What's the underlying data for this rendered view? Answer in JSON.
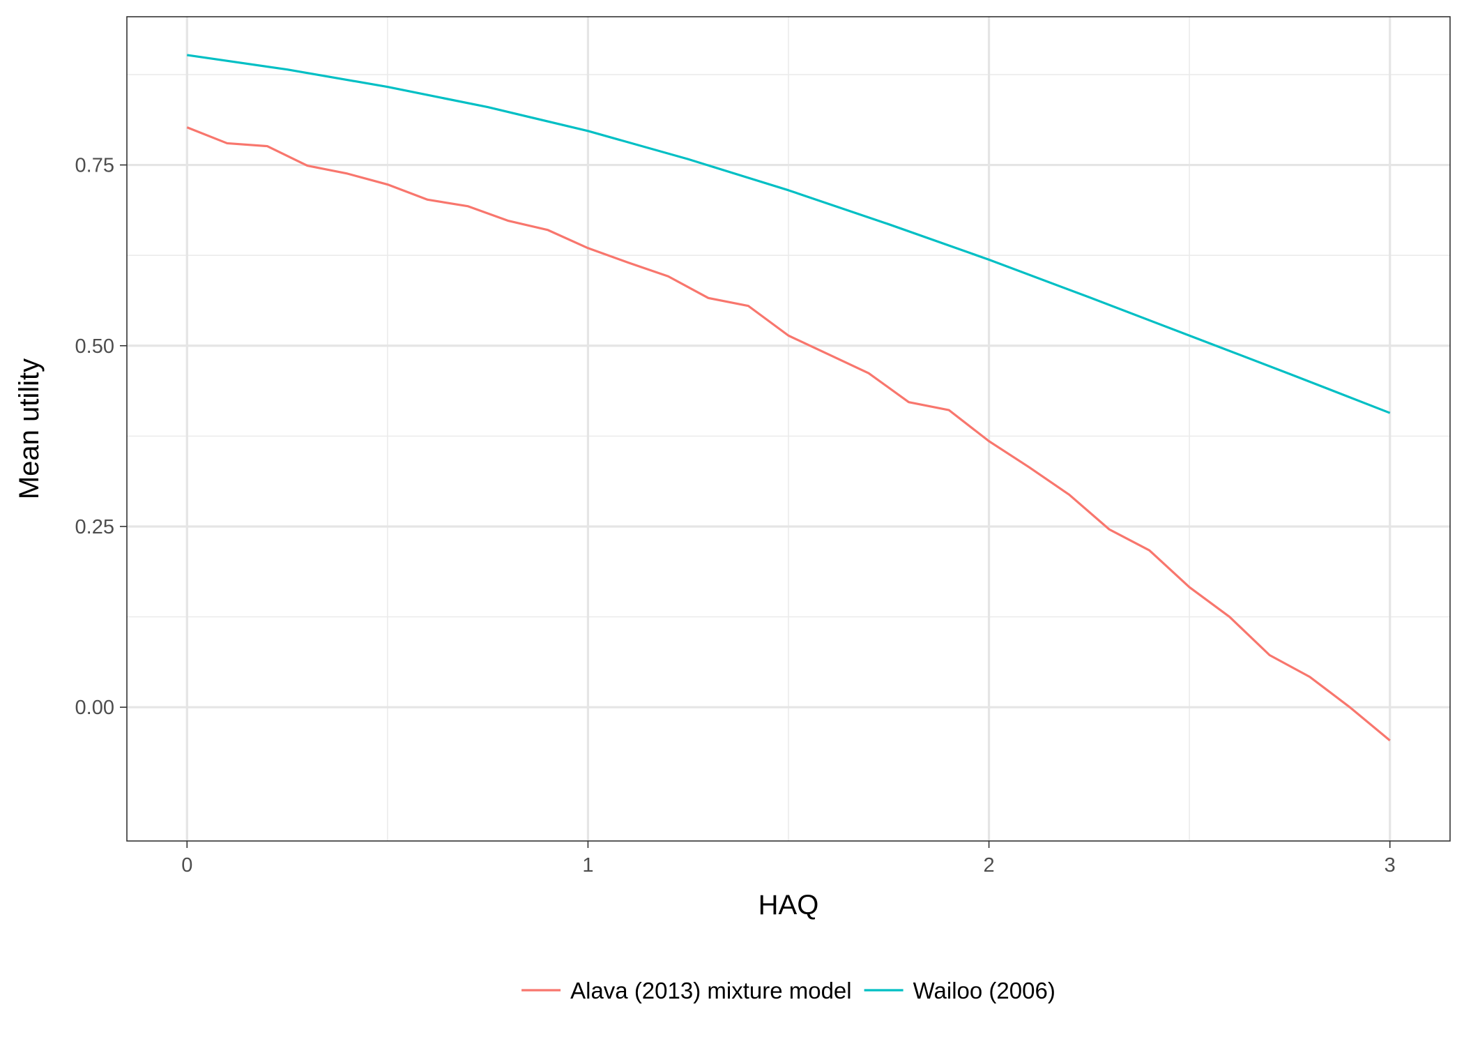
{
  "chart_data": {
    "type": "line",
    "title": "",
    "xlabel": "HAQ",
    "ylabel": "Mean utility",
    "xlim": [
      -0.15,
      3.15
    ],
    "ylim": [
      -0.185,
      0.955
    ],
    "x_ticks": [
      0,
      1,
      2,
      3
    ],
    "x_tick_labels": [
      "0",
      "1",
      "2",
      "3"
    ],
    "x_minor_ticks": [
      0.5,
      1.5,
      2.5
    ],
    "y_ticks": [
      0,
      0.25,
      0.5,
      0.75
    ],
    "y_tick_labels": [
      "0.00",
      "0.25",
      "0.50",
      "0.75"
    ],
    "y_minor_ticks": [
      0.125,
      0.375,
      0.625,
      0.875
    ],
    "grid": true,
    "legend_position": "bottom",
    "series": [
      {
        "name": "Alava (2013) mixture model",
        "color": "#F8766D",
        "x": [
          0,
          0.1,
          0.2,
          0.3,
          0.4,
          0.5,
          0.6,
          0.7,
          0.8,
          0.9,
          1.0,
          1.1,
          1.2,
          1.3,
          1.4,
          1.5,
          1.6,
          1.7,
          1.8,
          1.9,
          2.0,
          2.1,
          2.2,
          2.3,
          2.4,
          2.5,
          2.6,
          2.7,
          2.8,
          2.9,
          3.0
        ],
        "y": [
          0.802,
          0.78,
          0.776,
          0.749,
          0.738,
          0.723,
          0.702,
          0.693,
          0.673,
          0.66,
          0.635,
          0.615,
          0.596,
          0.566,
          0.555,
          0.514,
          0.488,
          0.462,
          0.422,
          0.411,
          0.368,
          0.332,
          0.294,
          0.246,
          0.217,
          0.166,
          0.125,
          0.072,
          0.042,
          0.0,
          -0.046
        ]
      },
      {
        "name": "Wailoo (2006)",
        "color": "#00BFC4",
        "x": [
          0,
          0.25,
          0.5,
          0.75,
          1.0,
          1.25,
          1.5,
          1.75,
          2.0,
          2.25,
          2.5,
          2.75,
          3.0
        ],
        "y": [
          0.902,
          0.882,
          0.858,
          0.83,
          0.797,
          0.758,
          0.715,
          0.668,
          0.619,
          0.567,
          0.514,
          0.461,
          0.407
        ]
      }
    ]
  }
}
